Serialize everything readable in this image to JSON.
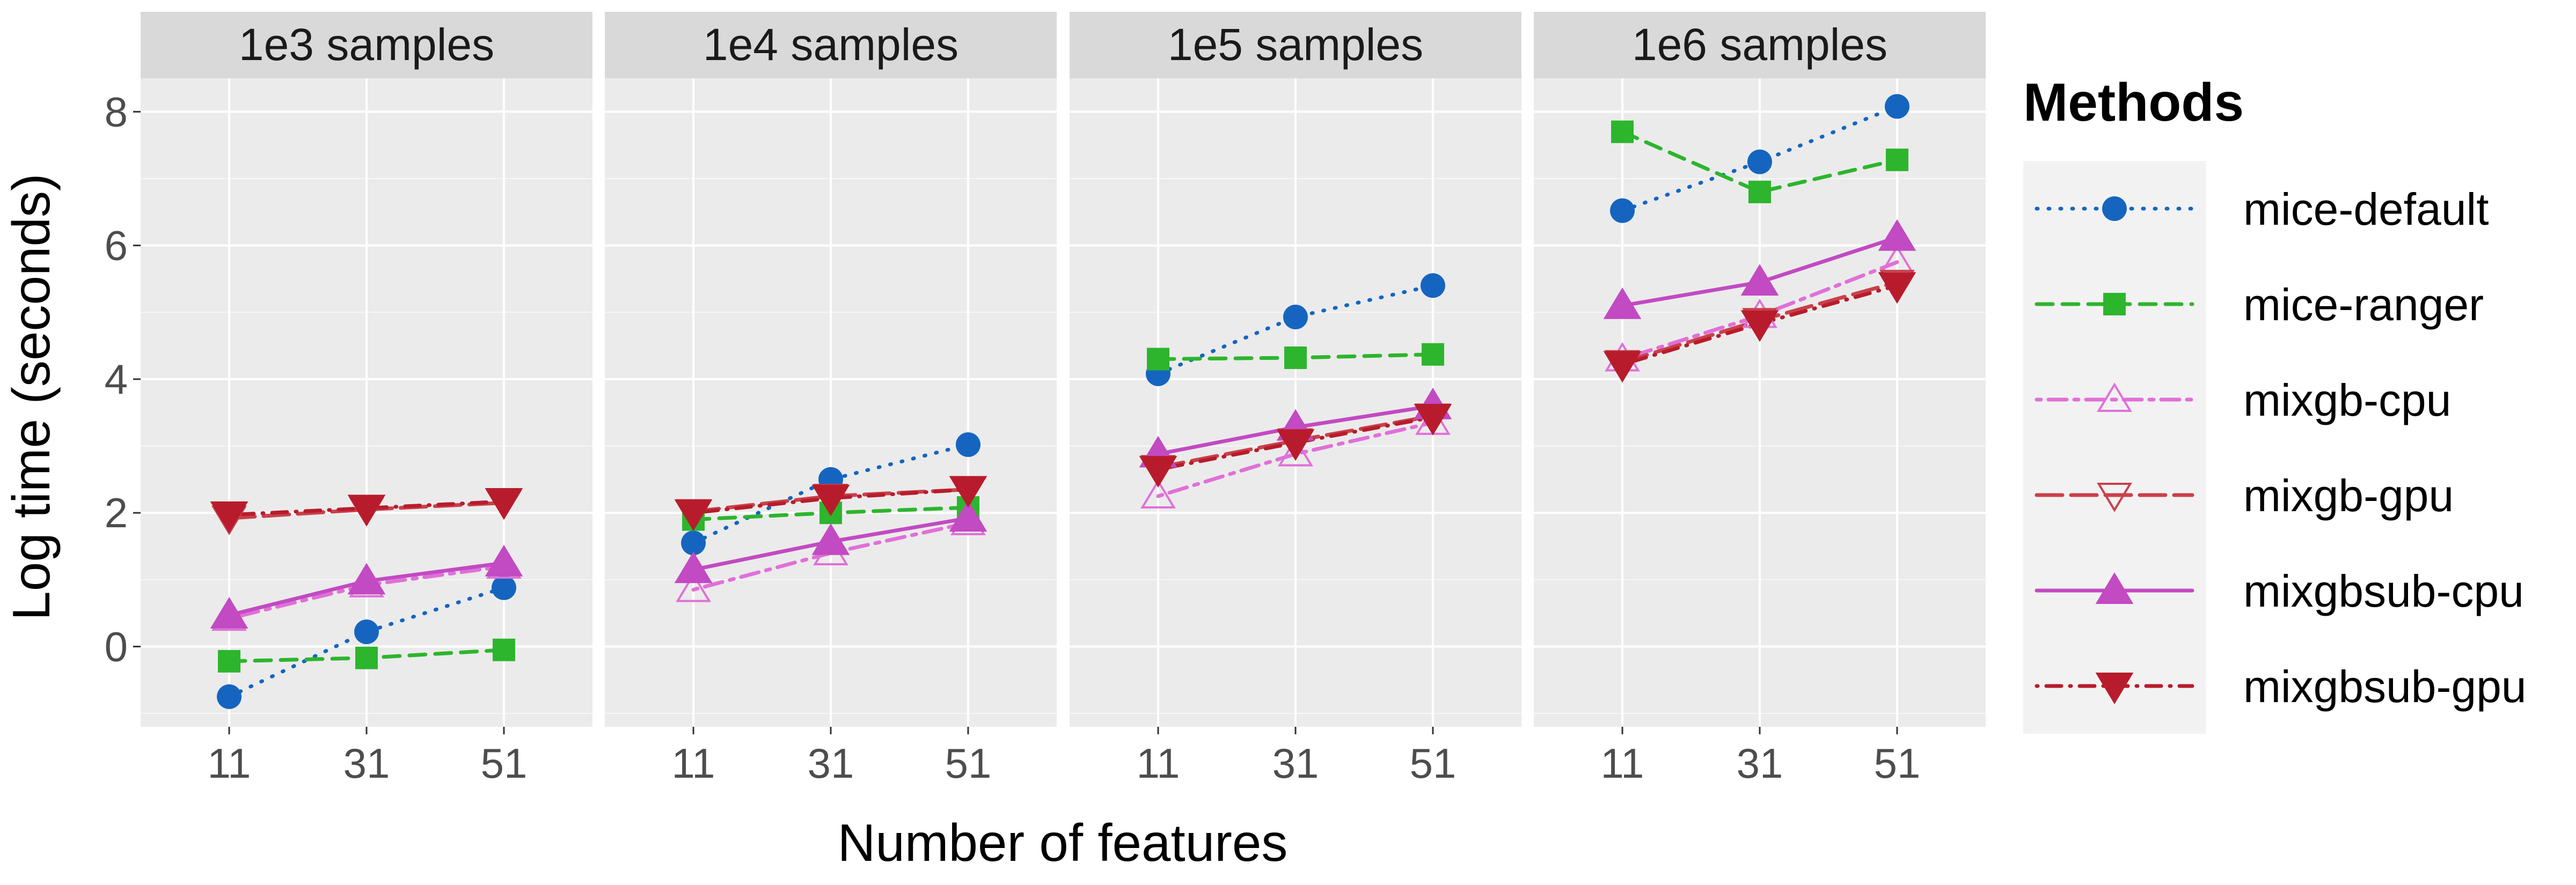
{
  "chart_data": {
    "type": "line",
    "xlabel": "Number of features",
    "ylabel": "Log time (seconds)",
    "x_categories": [
      "11",
      "31",
      "51"
    ],
    "ylim": [
      -1.2,
      8.5
    ],
    "y_ticks": [
      0,
      2,
      4,
      6,
      8
    ],
    "y_tick_labels": [
      "0",
      "2",
      "4",
      "6",
      "8"
    ],
    "legend": {
      "title": "Methods",
      "position": "right"
    },
    "facets": [
      {
        "label": "1e3 samples",
        "series": [
          {
            "name": "mice-default",
            "values": [
              -0.75,
              0.22,
              0.88
            ]
          },
          {
            "name": "mice-ranger",
            "values": [
              -0.22,
              -0.17,
              -0.05
            ]
          },
          {
            "name": "mixgb-cpu",
            "values": [
              0.42,
              0.92,
              1.2
            ]
          },
          {
            "name": "mixgb-gpu",
            "values": [
              1.92,
              2.05,
              2.15
            ]
          },
          {
            "name": "mixgbsub-cpu",
            "values": [
              0.47,
              0.98,
              1.25
            ]
          },
          {
            "name": "mixgbsub-gpu",
            "values": [
              1.97,
              2.07,
              2.17
            ]
          }
        ]
      },
      {
        "label": "1e4 samples",
        "series": [
          {
            "name": "mice-default",
            "values": [
              1.55,
              2.5,
              3.02
            ]
          },
          {
            "name": "mice-ranger",
            "values": [
              1.9,
              2.0,
              2.08
            ]
          },
          {
            "name": "mixgb-cpu",
            "values": [
              0.85,
              1.4,
              1.85
            ]
          },
          {
            "name": "mixgb-gpu",
            "values": [
              2.02,
              2.25,
              2.35
            ]
          },
          {
            "name": "mixgbsub-cpu",
            "values": [
              1.15,
              1.57,
              1.92
            ]
          },
          {
            "name": "mixgbsub-gpu",
            "values": [
              2.0,
              2.22,
              2.35
            ]
          }
        ]
      },
      {
        "label": "1e5 samples",
        "series": [
          {
            "name": "mice-default",
            "values": [
              4.08,
              4.93,
              5.4
            ]
          },
          {
            "name": "mice-ranger",
            "values": [
              4.3,
              4.32,
              4.37
            ]
          },
          {
            "name": "mixgb-cpu",
            "values": [
              2.25,
              2.88,
              3.35
            ]
          },
          {
            "name": "mixgb-gpu",
            "values": [
              2.68,
              3.08,
              3.45
            ]
          },
          {
            "name": "mixgbsub-cpu",
            "values": [
              2.88,
              3.28,
              3.6
            ]
          },
          {
            "name": "mixgbsub-gpu",
            "values": [
              2.65,
              3.05,
              3.43
            ]
          }
        ]
      },
      {
        "label": "1e6 samples",
        "series": [
          {
            "name": "mice-default",
            "values": [
              6.52,
              7.25,
              8.08
            ]
          },
          {
            "name": "mice-ranger",
            "values": [
              7.7,
              6.8,
              7.28
            ]
          },
          {
            "name": "mixgb-cpu",
            "values": [
              4.3,
              4.95,
              5.75
            ]
          },
          {
            "name": "mixgb-gpu",
            "values": [
              4.25,
              4.88,
              5.45
            ]
          },
          {
            "name": "mixgbsub-cpu",
            "values": [
              5.1,
              5.45,
              6.12
            ]
          },
          {
            "name": "mixgbsub-gpu",
            "values": [
              4.22,
              4.83,
              5.4
            ]
          }
        ]
      }
    ],
    "series_styles": [
      {
        "name": "mice-default",
        "color": "#1565C0",
        "dash": "dotted",
        "shape": "circle"
      },
      {
        "name": "mice-ranger",
        "color": "#2DB52D",
        "dash": "dashed",
        "shape": "square"
      },
      {
        "name": "mixgb-cpu",
        "color": "#E070D8",
        "dash": "dashdot",
        "shape": "triangle-up-open"
      },
      {
        "name": "mixgb-gpu",
        "color": "#C8414B",
        "dash": "longdash",
        "shape": "triangle-down-open"
      },
      {
        "name": "mixgbsub-cpu",
        "color": "#C24AC2",
        "dash": "solid",
        "shape": "triangle-up"
      },
      {
        "name": "mixgbsub-gpu",
        "color": "#B81C2C",
        "dash": "dotdash",
        "shape": "triangle-down"
      }
    ]
  }
}
